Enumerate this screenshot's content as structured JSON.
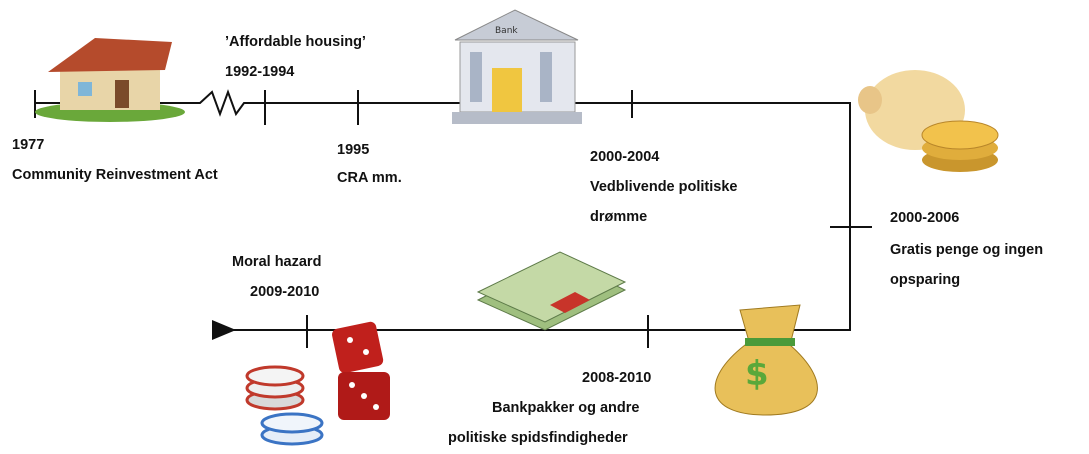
{
  "events": [
    {
      "date": "1977",
      "label": "Community Reinvestment Act"
    },
    {
      "title": "’Affordable housing’",
      "date": "1992-1994"
    },
    {
      "date": "1995",
      "label": "CRA mm."
    },
    {
      "date": "2000-2004",
      "lines": [
        "Vedblivende politiske",
        "drømme"
      ]
    },
    {
      "date": "2000-2006",
      "lines": [
        "Gratis penge og ingen",
        "opsparing"
      ]
    },
    {
      "date": "2008-2010",
      "lines": [
        "Bankpakker og andre",
        "politiske spidsfindigheder"
      ]
    },
    {
      "title": "Moral hazard",
      "date": "2009-2010"
    }
  ],
  "icons": {
    "bank_sign": "Bank"
  }
}
